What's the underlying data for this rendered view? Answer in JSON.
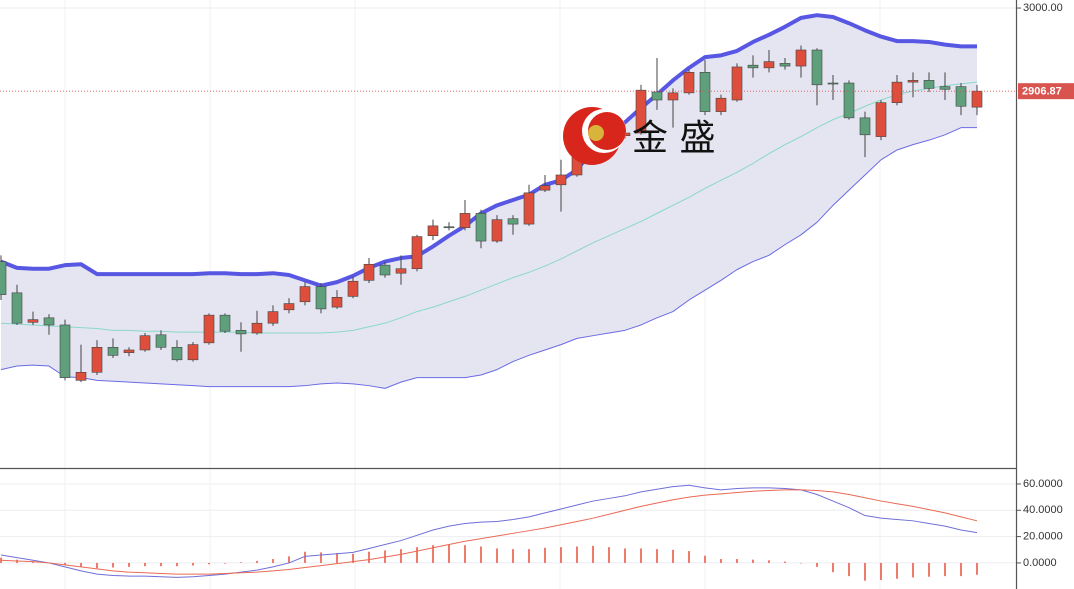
{
  "chart_data": [
    {
      "type": "candlestick",
      "watermark": "金 盛",
      "up_color": "#dd4f3c",
      "down_color": "#5f9f7c",
      "open": [
        2716,
        2681,
        2648,
        2653,
        2645,
        2583,
        2592,
        2620,
        2614,
        2617,
        2634,
        2620,
        2606,
        2625,
        2656,
        2639,
        2636,
        2647,
        2662,
        2671,
        2688,
        2665,
        2677,
        2695,
        2712,
        2703,
        2708,
        2745,
        2755,
        2754,
        2770,
        2739,
        2764,
        2758,
        2796,
        2802,
        2813,
        2841,
        2863,
        2857,
        2860,
        2906,
        2897,
        2905,
        2928,
        2884,
        2897,
        2936,
        2933,
        2938,
        2935,
        2953,
        2916,
        2916,
        2877,
        2856,
        2894,
        2917,
        2919,
        2912,
        2912,
        2889
      ],
      "high": [
        2723,
        2690,
        2660,
        2657,
        2651,
        2623,
        2628,
        2630,
        2620,
        2636,
        2639,
        2628,
        2626,
        2658,
        2658,
        2648,
        2661,
        2667,
        2675,
        2693,
        2692,
        2684,
        2699,
        2720,
        2716,
        2723,
        2746,
        2763,
        2760,
        2785,
        2774,
        2768,
        2768,
        2802,
        2813,
        2830,
        2841,
        2872,
        2866,
        2866,
        2914,
        2944,
        2910,
        2931,
        2942,
        2903,
        2938,
        2947,
        2953,
        2944,
        2958,
        2955,
        2925,
        2919,
        2884,
        2897,
        2925,
        2928,
        2928,
        2928,
        2916,
        2914
      ],
      "low": [
        2673,
        2645,
        2645,
        2634,
        2583,
        2581,
        2589,
        2608,
        2610,
        2615,
        2617,
        2604,
        2604,
        2623,
        2636,
        2615,
        2634,
        2644,
        2658,
        2667,
        2658,
        2663,
        2675,
        2692,
        2698,
        2690,
        2705,
        2740,
        2751,
        2751,
        2731,
        2737,
        2746,
        2756,
        2794,
        2772,
        2811,
        2839,
        2852,
        2854,
        2858,
        2886,
        2866,
        2903,
        2880,
        2880,
        2895,
        2922,
        2928,
        2931,
        2922,
        2891,
        2897,
        2875,
        2833,
        2852,
        2891,
        2900,
        2906,
        2897,
        2880,
        2880
      ],
      "close": [
        2679,
        2647,
        2651,
        2645,
        2586,
        2592,
        2620,
        2611,
        2617,
        2633,
        2620,
        2606,
        2623,
        2656,
        2638,
        2635,
        2647,
        2660,
        2669,
        2688,
        2663,
        2676,
        2694,
        2713,
        2701,
        2708,
        2744,
        2756,
        2754,
        2770,
        2739,
        2763,
        2758,
        2793,
        2801,
        2813,
        2835,
        2863,
        2856,
        2860,
        2908,
        2897,
        2905,
        2928,
        2884,
        2899,
        2934,
        2933,
        2940,
        2935,
        2953,
        2914,
        2915,
        2877,
        2858,
        2894,
        2917,
        2919,
        2910,
        2909,
        2890,
        2906.87
      ],
      "series": [
        {
          "color": "#5757e3",
          "values": [
            2716,
            2709,
            2708,
            2708,
            2712,
            2713,
            2702,
            2702,
            2702,
            2702,
            2702,
            2702,
            2702,
            2703,
            2703,
            2702,
            2702,
            2703,
            2701,
            2695,
            2689,
            2693,
            2700,
            2709,
            2716,
            2720,
            2722,
            2733,
            2745,
            2756,
            2770,
            2779,
            2785,
            2791,
            2802,
            2807,
            2819,
            2841,
            2858,
            2872,
            2888,
            2903,
            2919,
            2933,
            2945,
            2947,
            2952,
            2962,
            2970,
            2979,
            2989,
            2992,
            2990,
            2983,
            2975,
            2968,
            2963,
            2963,
            2962,
            2959,
            2957,
            2957
          ]
        },
        {
          "color": "#8ad8c8",
          "values": [
            2647,
            2646,
            2645,
            2644,
            2643,
            2642,
            2641,
            2639,
            2639,
            2638,
            2638,
            2637,
            2637,
            2637,
            2637,
            2637,
            2636,
            2636,
            2636,
            2636,
            2636,
            2637,
            2639,
            2643,
            2647,
            2653,
            2660,
            2665,
            2671,
            2677,
            2684,
            2691,
            2698,
            2704,
            2711,
            2719,
            2728,
            2737,
            2745,
            2753,
            2761,
            2770,
            2779,
            2788,
            2798,
            2807,
            2816,
            2826,
            2837,
            2847,
            2856,
            2866,
            2875,
            2882,
            2890,
            2897,
            2903,
            2907,
            2910,
            2913,
            2915,
            2917
          ]
        },
        {
          "color": "#6a6ae6",
          "values": [
            2595,
            2599,
            2600,
            2599,
            2587,
            2586,
            2583,
            2582,
            2581,
            2580,
            2579,
            2578,
            2577,
            2576,
            2576,
            2576,
            2576,
            2576,
            2576,
            2577,
            2579,
            2580,
            2579,
            2577,
            2574,
            2581,
            2586,
            2586,
            2586,
            2586,
            2589,
            2595,
            2604,
            2611,
            2617,
            2623,
            2630,
            2633,
            2636,
            2639,
            2645,
            2653,
            2660,
            2673,
            2684,
            2695,
            2707,
            2716,
            2723,
            2735,
            2746,
            2760,
            2779,
            2796,
            2813,
            2830,
            2841,
            2847,
            2852,
            2858,
            2866,
            2866
          ]
        }
      ],
      "band_fill": "#e5e5f1",
      "ylim": [
        2484.8,
        3009
      ],
      "yticks": [
        {
          "value": 3000,
          "label": "3000.00"
        }
      ],
      "last_price": {
        "value": 2906.87,
        "label": "2906.87"
      },
      "last_price_color": "#d9534f"
    },
    {
      "type": "line",
      "series": [
        {
          "color": "#6f6fd8",
          "values": [
            6,
            4,
            2,
            0,
            -3,
            -6,
            -8.5,
            -9.5,
            -10,
            -10,
            -10.5,
            -11,
            -10.5,
            -9.5,
            -8.5,
            -7,
            -5.5,
            -3,
            0,
            5,
            6,
            7,
            8,
            11,
            14,
            17,
            21,
            25,
            28,
            30,
            31,
            31.5,
            33,
            35,
            38,
            41,
            44,
            47,
            49,
            51,
            54,
            56,
            58,
            59,
            57,
            55.5,
            56.5,
            57,
            57,
            56.5,
            55.5,
            52,
            47,
            42,
            36,
            34,
            33,
            32,
            30,
            28,
            25,
            23
          ]
        },
        {
          "color": "#ea6a55",
          "values": [
            2,
            1.5,
            1,
            0,
            -1.5,
            -3,
            -4.5,
            -6,
            -7,
            -7.5,
            -8,
            -8.5,
            -8.5,
            -8.5,
            -8,
            -7.5,
            -7,
            -6,
            -5,
            -3.5,
            -2,
            -0.5,
            1,
            2.5,
            4.5,
            6.5,
            9,
            11.5,
            14,
            16.5,
            18.5,
            20.5,
            22.5,
            24.5,
            26.5,
            29,
            31.5,
            34,
            37,
            40,
            43,
            45.5,
            48,
            50,
            51.5,
            52.5,
            53.5,
            54.5,
            55,
            55.5,
            55.5,
            55,
            54,
            52,
            49.5,
            47,
            45,
            43,
            40.5,
            38,
            35,
            32
          ]
        }
      ],
      "bars": {
        "color": "#e8503c",
        "values": [
          4,
          2.5,
          1,
          0,
          -1.5,
          -3,
          -4,
          -3.5,
          -3,
          -2.5,
          -2.5,
          -2.5,
          -2,
          -1,
          -0.5,
          0.5,
          1.5,
          3,
          5,
          8.5,
          8,
          7.5,
          7,
          8.5,
          9.5,
          10.5,
          12,
          13.5,
          14,
          13.5,
          12.5,
          11,
          10.5,
          10.5,
          11.5,
          12,
          12.5,
          13,
          12,
          11,
          11,
          10.5,
          10,
          9,
          5.5,
          3,
          3,
          2.5,
          2,
          1,
          0,
          -3,
          -7,
          -10,
          -13.5,
          -13,
          -12,
          -11,
          -10.5,
          -10,
          -10,
          -9
        ]
      },
      "ylim": [
        -19.8,
        70.6
      ],
      "yticks": [
        {
          "value": 60,
          "label": "60.0000"
        },
        {
          "value": 40,
          "label": "40.0000"
        },
        {
          "value": 20,
          "label": "20.0000"
        },
        {
          "value": 0,
          "label": "0.0000"
        }
      ],
      "grid": true
    }
  ]
}
